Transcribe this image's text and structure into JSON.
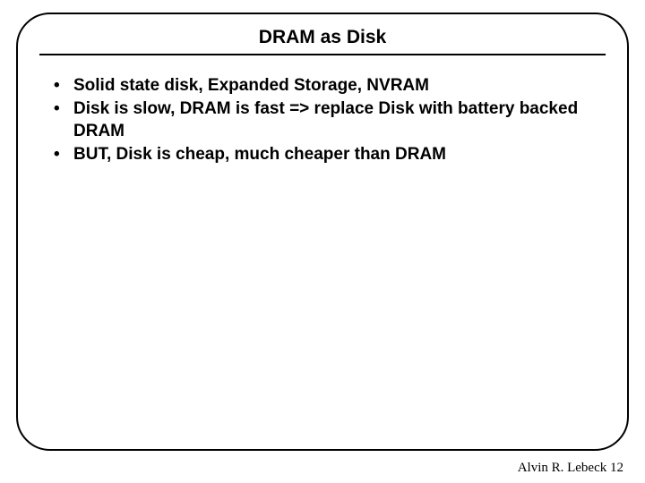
{
  "title": "DRAM as Disk",
  "title_fontsize": 21,
  "bullets": [
    "Solid state disk, Expanded Storage, NVRAM",
    "Disk is slow, DRAM is fast => replace Disk with battery backed DRAM",
    "BUT, Disk is cheap, much cheaper than DRAM"
  ],
  "bullet_fontsize": 19,
  "bullet_lineheight": 1.28,
  "footer_author": "Alvin R. Lebeck",
  "footer_page": "12",
  "footer_fontsize": 15,
  "colors": {
    "text": "#000000",
    "border": "#000000",
    "background": "#ffffff"
  }
}
